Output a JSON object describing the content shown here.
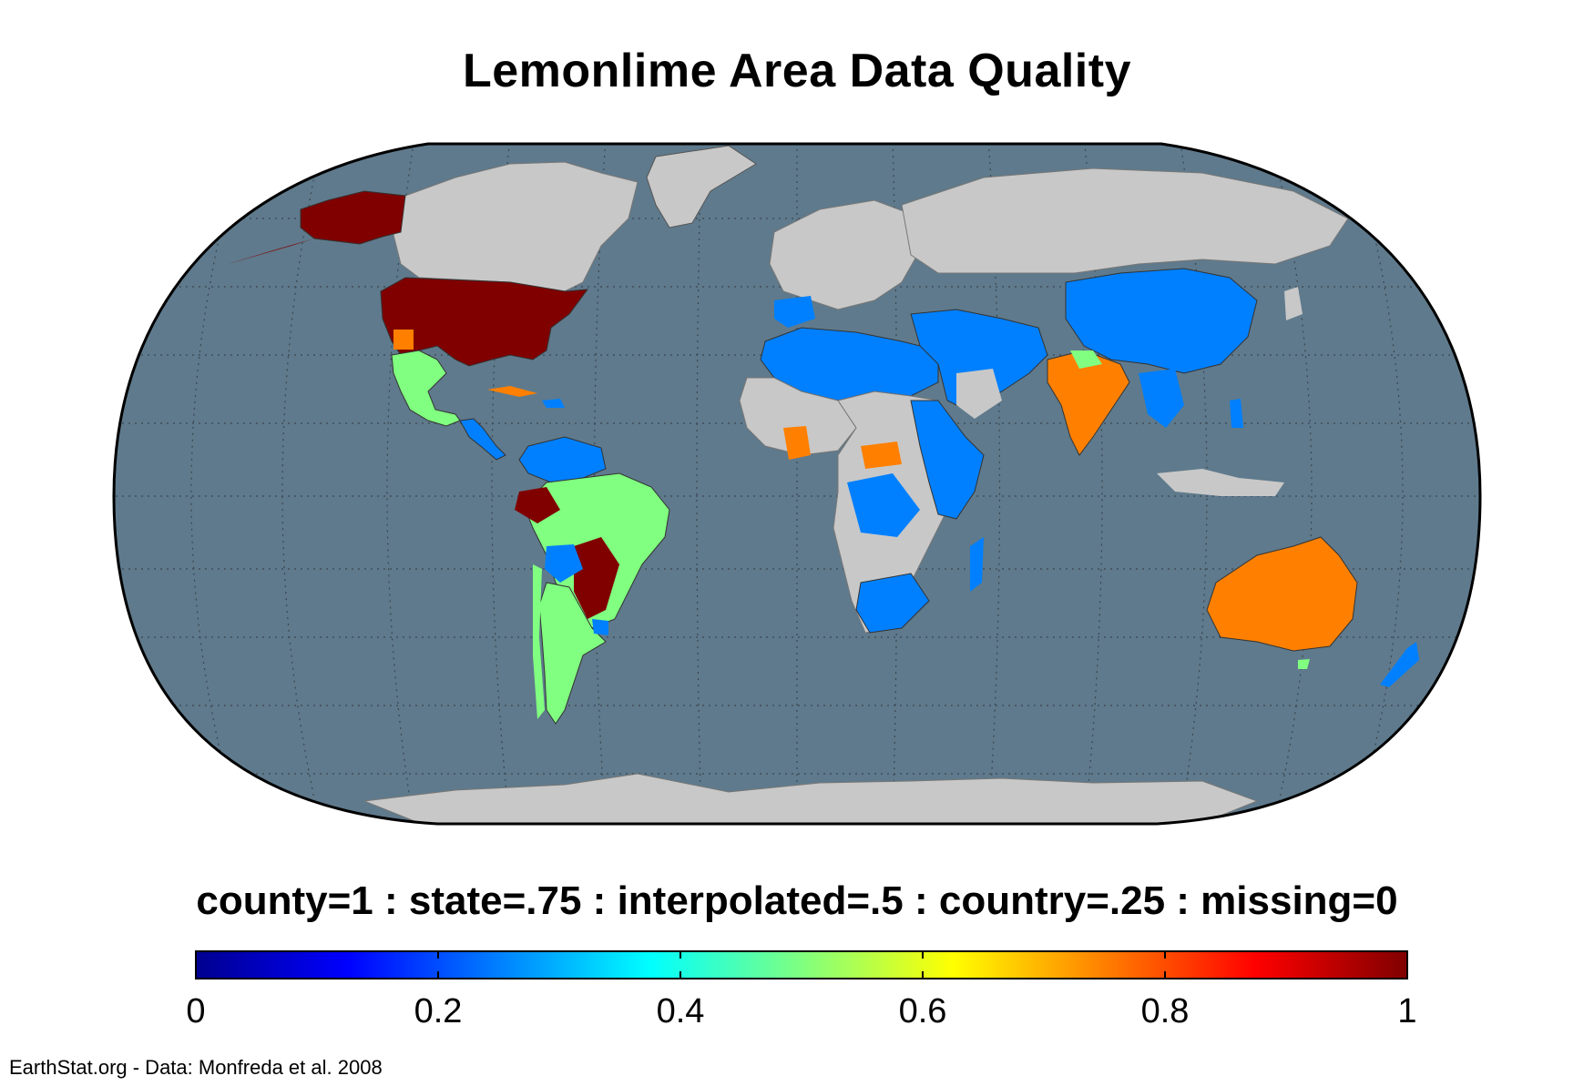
{
  "title": "Lemonlime Area Data Quality",
  "legend_caption": "county=1 : state=.75 : interpolated=.5 : country=.25 : missing=0",
  "colorbar": {
    "ticks": [
      {
        "value": 0,
        "label": "0"
      },
      {
        "value": 0.2,
        "label": "0.2"
      },
      {
        "value": 0.4,
        "label": "0.4"
      },
      {
        "value": 0.6,
        "label": "0.6"
      },
      {
        "value": 0.8,
        "label": "0.8"
      },
      {
        "value": 1,
        "label": "1"
      }
    ],
    "range": [
      0,
      1
    ],
    "colormap": "jet"
  },
  "credit": "EarthStat.org - Data: Monfreda et al. 2008",
  "colors": {
    "ocean": "#5f7a8c",
    "land_no_data": "#c8c8c8",
    "value_1": "#800000",
    "value_0_75": "#ff8000",
    "value_0_5": "#80ff80",
    "value_0_25": "#0080ff",
    "border": "#000000"
  },
  "regions": [
    {
      "name": "United States",
      "value": 1
    },
    {
      "name": "Alaska",
      "value": 1
    },
    {
      "name": "Mexico",
      "value": 0.5
    },
    {
      "name": "Brazil",
      "value": 0.5
    },
    {
      "name": "Argentina",
      "value": 0.5
    },
    {
      "name": "Australia",
      "value": 0.75
    },
    {
      "name": "India",
      "value": 0.75
    },
    {
      "name": "China",
      "value": 0.25
    },
    {
      "name": "Northern Africa",
      "value": 0.25
    },
    {
      "name": "Middle East",
      "value": 0.25
    }
  ]
}
